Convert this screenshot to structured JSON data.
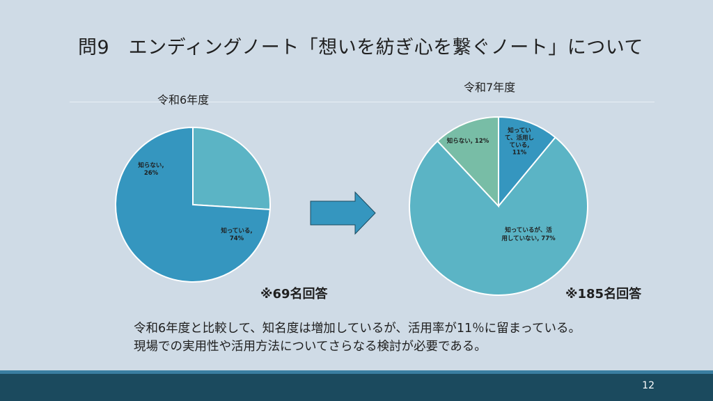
{
  "slide": {
    "title": "問9　エンディングノート「想いを紡ぎ心を繋ぐノート」について",
    "conclusion": [
      "令和6年度と比較して、知名度は増加しているが、活用率が11％に留まっている。",
      "現場での実用性や活用方法についてさらなる検討が必要である。"
    ],
    "page_number": "12",
    "arrow_icon": "right-arrow-icon"
  },
  "chart_data": [
    {
      "type": "pie",
      "title": "令和6年度",
      "respondents": "※69名回答",
      "series": [
        {
          "label_lines": [
            "知らない,",
            "26%"
          ],
          "value": 26,
          "color": "#5bb4c5"
        },
        {
          "label_lines": [
            "知っている,",
            "74%"
          ],
          "value": 74,
          "color": "#3596bf"
        }
      ]
    },
    {
      "type": "pie",
      "title": "令和7年度",
      "respondents": "※185名回答",
      "series": [
        {
          "label_lines": [
            "知ってい",
            "て、活用し",
            "ている,",
            "11%"
          ],
          "value": 11,
          "color": "#3596bf"
        },
        {
          "label_lines": [
            "知っているが、活",
            "用していない, 77%"
          ],
          "value": 77,
          "color": "#5bb4c5"
        },
        {
          "label_lines": [
            "知らない, 12%"
          ],
          "value": 12,
          "color": "#78bda6"
        }
      ]
    }
  ]
}
